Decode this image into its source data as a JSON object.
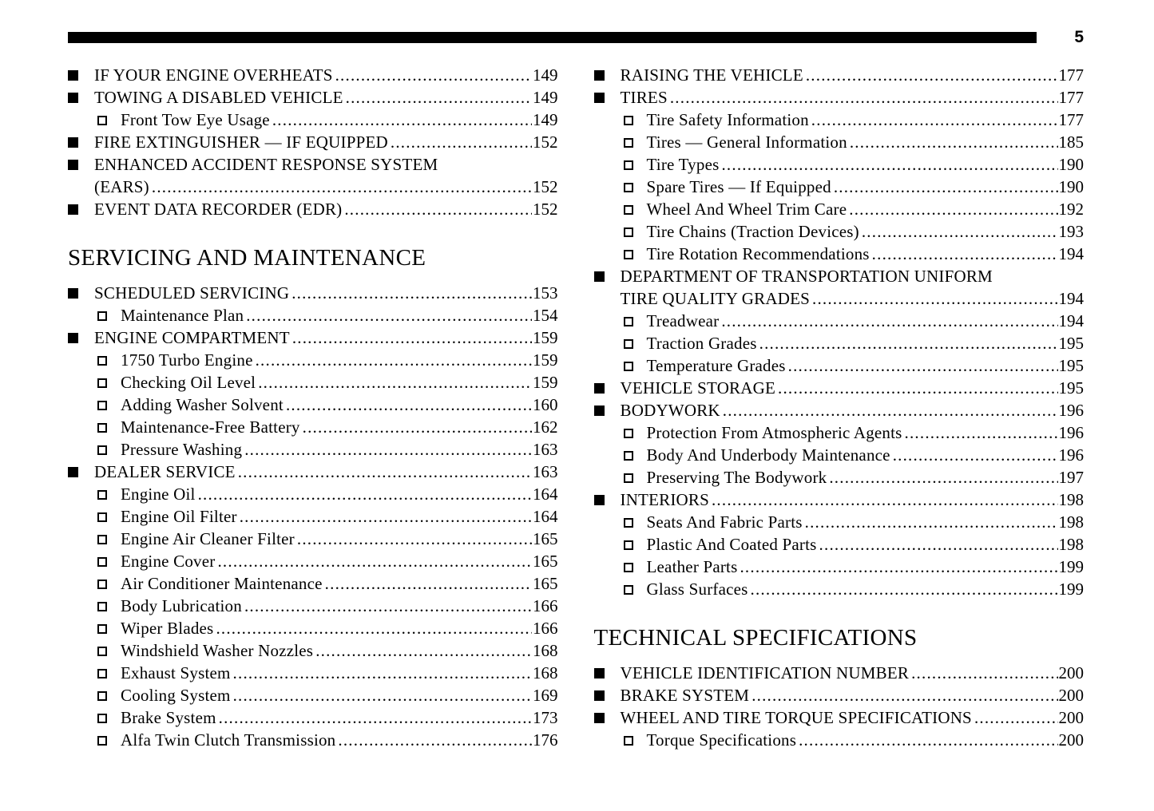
{
  "page": {
    "number": "5"
  },
  "colors": {
    "text": "#000000",
    "background": "#ffffff",
    "header_bar": "#000000"
  },
  "columns": {
    "left": {
      "blocks": [
        {
          "type": "entries",
          "items": [
            {
              "level": 1,
              "label": "IF YOUR ENGINE OVERHEATS",
              "page": "149"
            },
            {
              "level": 1,
              "label": "TOWING A DISABLED VEHICLE",
              "page": "149"
            },
            {
              "level": 2,
              "label": "Front Tow Eye Usage",
              "page": "149"
            },
            {
              "level": 1,
              "label": "FIRE EXTINGUISHER — IF EQUIPPED",
              "page": "152"
            },
            {
              "level": 1,
              "label": "ENHANCED ACCIDENT RESPONSE SYSTEM",
              "label2": "(EARS)",
              "page": "152"
            },
            {
              "level": 1,
              "label": "EVENT DATA RECORDER (EDR)",
              "page": "152"
            }
          ]
        },
        {
          "type": "heading",
          "text": "SERVICING AND MAINTENANCE"
        },
        {
          "type": "entries",
          "items": [
            {
              "level": 1,
              "label": "SCHEDULED SERVICING",
              "page": "153"
            },
            {
              "level": 2,
              "label": "Maintenance Plan",
              "page": "154"
            },
            {
              "level": 1,
              "label": "ENGINE COMPARTMENT",
              "page": "159"
            },
            {
              "level": 2,
              "label": "1750 Turbo Engine",
              "page": "159"
            },
            {
              "level": 2,
              "label": "Checking Oil Level",
              "page": "159"
            },
            {
              "level": 2,
              "label": "Adding Washer Solvent",
              "page": "160"
            },
            {
              "level": 2,
              "label": "Maintenance-Free Battery",
              "page": "162"
            },
            {
              "level": 2,
              "label": "Pressure Washing",
              "page": "163"
            },
            {
              "level": 1,
              "label": "DEALER SERVICE",
              "page": "163"
            },
            {
              "level": 2,
              "label": "Engine Oil",
              "page": "164"
            },
            {
              "level": 2,
              "label": "Engine Oil Filter",
              "page": "164"
            },
            {
              "level": 2,
              "label": "Engine Air Cleaner Filter",
              "page": "165"
            },
            {
              "level": 2,
              "label": "Engine Cover",
              "page": "165"
            },
            {
              "level": 2,
              "label": "Air Conditioner Maintenance",
              "page": "165"
            },
            {
              "level": 2,
              "label": "Body Lubrication",
              "page": "166"
            },
            {
              "level": 2,
              "label": "Wiper Blades",
              "page": "166"
            },
            {
              "level": 2,
              "label": "Windshield Washer Nozzles",
              "page": "168"
            },
            {
              "level": 2,
              "label": "Exhaust System",
              "page": "168"
            },
            {
              "level": 2,
              "label": "Cooling System",
              "page": "169"
            },
            {
              "level": 2,
              "label": "Brake System",
              "page": "173"
            },
            {
              "level": 2,
              "label": "Alfa Twin Clutch Transmission",
              "page": "176"
            }
          ]
        }
      ]
    },
    "right": {
      "blocks": [
        {
          "type": "entries",
          "items": [
            {
              "level": 1,
              "label": "RAISING THE VEHICLE",
              "page": "177"
            },
            {
              "level": 1,
              "label": "TIRES",
              "page": "177"
            },
            {
              "level": 2,
              "label": "Tire Safety Information",
              "page": "177"
            },
            {
              "level": 2,
              "label": "Tires — General Information",
              "page": "185"
            },
            {
              "level": 2,
              "label": "Tire Types",
              "page": "190"
            },
            {
              "level": 2,
              "label": "Spare Tires — If Equipped",
              "page": "190"
            },
            {
              "level": 2,
              "label": "Wheel And Wheel Trim Care",
              "page": "192"
            },
            {
              "level": 2,
              "label": "Tire Chains (Traction Devices)",
              "page": "193"
            },
            {
              "level": 2,
              "label": "Tire Rotation Recommendations",
              "page": "194"
            },
            {
              "level": 1,
              "label": "DEPARTMENT OF TRANSPORTATION UNIFORM",
              "label2": "TIRE QUALITY GRADES",
              "page": "194"
            },
            {
              "level": 2,
              "label": "Treadwear",
              "page": "194"
            },
            {
              "level": 2,
              "label": "Traction Grades",
              "page": "195"
            },
            {
              "level": 2,
              "label": "Temperature Grades",
              "page": "195"
            },
            {
              "level": 1,
              "label": "VEHICLE STORAGE",
              "page": "195"
            },
            {
              "level": 1,
              "label": "BODYWORK",
              "page": "196"
            },
            {
              "level": 2,
              "label": "Protection From Atmospheric Agents",
              "page": "196"
            },
            {
              "level": 2,
              "label": "Body And Underbody Maintenance",
              "page": "196"
            },
            {
              "level": 2,
              "label": "Preserving The Bodywork",
              "page": "197"
            },
            {
              "level": 1,
              "label": "INTERIORS",
              "page": "198"
            },
            {
              "level": 2,
              "label": "Seats And Fabric Parts",
              "page": "198"
            },
            {
              "level": 2,
              "label": "Plastic And Coated Parts",
              "page": "198"
            },
            {
              "level": 2,
              "label": "Leather Parts",
              "page": "199"
            },
            {
              "level": 2,
              "label": "Glass Surfaces",
              "page": "199"
            }
          ]
        },
        {
          "type": "heading",
          "text": "TECHNICAL SPECIFICATIONS"
        },
        {
          "type": "entries",
          "items": [
            {
              "level": 1,
              "label": "VEHICLE IDENTIFICATION NUMBER",
              "page": "200"
            },
            {
              "level": 1,
              "label": "BRAKE SYSTEM",
              "page": "200"
            },
            {
              "level": 1,
              "label": "WHEEL AND TIRE TORQUE SPECIFICATIONS",
              "page": "200"
            },
            {
              "level": 2,
              "label": "Torque Specifications",
              "page": "200"
            }
          ]
        }
      ]
    }
  }
}
